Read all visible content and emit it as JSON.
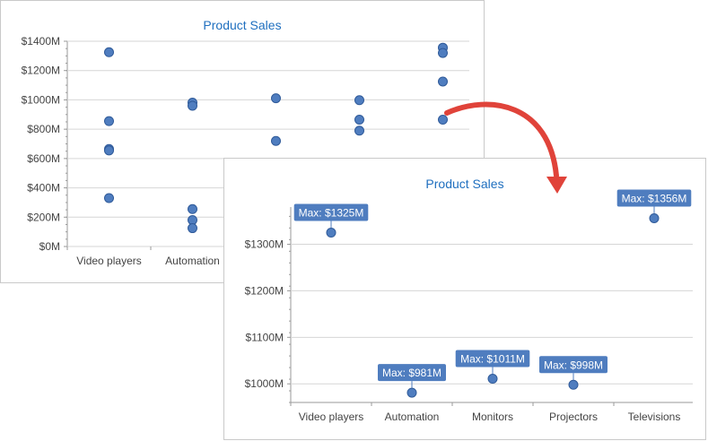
{
  "colors": {
    "title": "#1f6fbf",
    "point": "#4f7dbf",
    "point_stroke": "#2f5a99",
    "grid": "#d6d6d6",
    "axis": "#9a9a9a",
    "annotation_bg": "#4f7dbf",
    "arrow": "#e0433a"
  },
  "icons": {
    "arrow": "curved-arrow-icon"
  },
  "chart_data": [
    {
      "type": "scatter",
      "title": "Product Sales",
      "categories": [
        "Video players",
        "Automation",
        "Monitors",
        "Projectors",
        "Televisions"
      ],
      "visible_categories": [
        "Video players",
        "Automation"
      ],
      "yticks": [
        "$0M",
        "$200M",
        "$400M",
        "$600M",
        "$800M",
        "$1000M",
        "$1200M",
        "$1400M"
      ],
      "ylim": [
        0,
        1400
      ],
      "grid": true,
      "series": [
        {
          "points": [
            {
              "x": "Video players",
              "y": 1325
            },
            {
              "x": "Video players",
              "y": 855
            },
            {
              "x": "Video players",
              "y": 665
            },
            {
              "x": "Video players",
              "y": 655
            },
            {
              "x": "Video players",
              "y": 330
            },
            {
              "x": "Automation",
              "y": 981
            },
            {
              "x": "Automation",
              "y": 960
            },
            {
              "x": "Automation",
              "y": 255
            },
            {
              "x": "Automation",
              "y": 180
            },
            {
              "x": "Automation",
              "y": 125
            },
            {
              "x": "Monitors",
              "y": 1011
            },
            {
              "x": "Monitors",
              "y": 720
            },
            {
              "x": "Projectors",
              "y": 998
            },
            {
              "x": "Projectors",
              "y": 865
            },
            {
              "x": "Projectors",
              "y": 790
            },
            {
              "x": "Televisions",
              "y": 1356
            },
            {
              "x": "Televisions",
              "y": 1320
            },
            {
              "x": "Televisions",
              "y": 1125
            },
            {
              "x": "Televisions",
              "y": 865
            }
          ]
        }
      ]
    },
    {
      "type": "scatter",
      "title": "Product Sales",
      "categories": [
        "Video players",
        "Automation",
        "Monitors",
        "Projectors",
        "Televisions"
      ],
      "yticks": [
        "$1000M",
        "$1100M",
        "$1200M",
        "$1300M"
      ],
      "ylim": [
        960,
        1380
      ],
      "grid": true,
      "series": [
        {
          "points": [
            {
              "x": "Video players",
              "y": 1325,
              "label": "Max: $1325M"
            },
            {
              "x": "Automation",
              "y": 981,
              "label": "Max: $981M"
            },
            {
              "x": "Monitors",
              "y": 1011,
              "label": "Max: $1011M"
            },
            {
              "x": "Projectors",
              "y": 998,
              "label": "Max: $998M"
            },
            {
              "x": "Televisions",
              "y": 1356,
              "label": "Max: $1356M"
            }
          ]
        }
      ]
    }
  ]
}
